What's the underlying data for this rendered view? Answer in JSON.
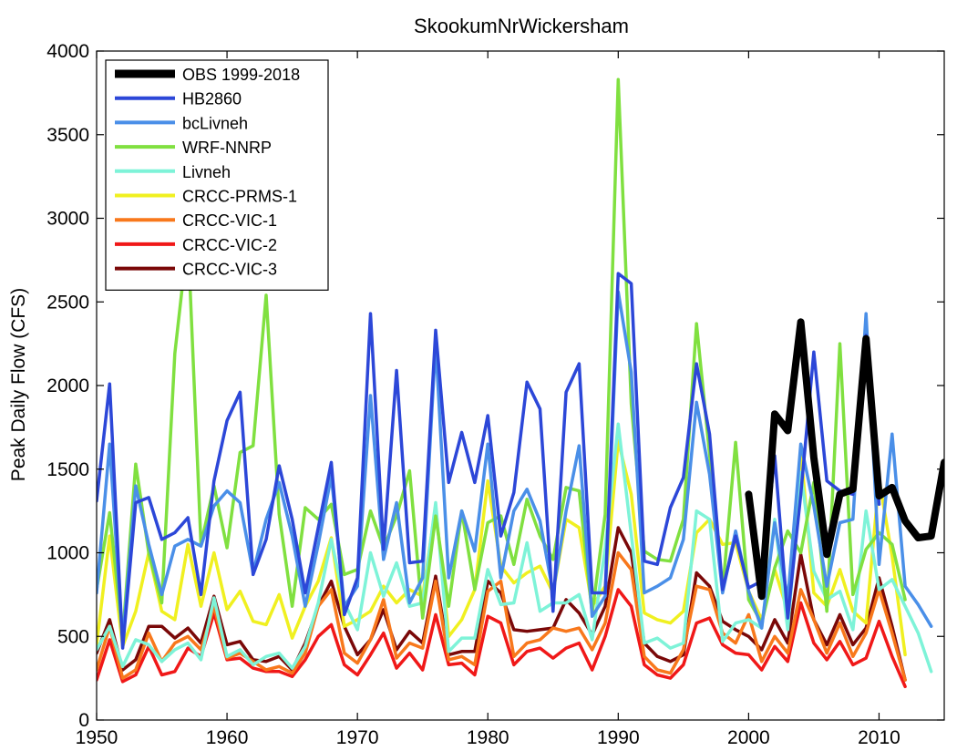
{
  "chart_data": {
    "type": "line",
    "title": "SkookumNrWickersham",
    "xlabel": "",
    "ylabel": "Peak Daily Flow (CFS)",
    "xlim": [
      1950,
      2015
    ],
    "ylim": [
      0,
      4000
    ],
    "xticks": [
      1950,
      1960,
      1970,
      1980,
      1990,
      2000,
      2010
    ],
    "yticks": [
      0,
      500,
      1000,
      1500,
      2000,
      2500,
      3000,
      3500,
      4000
    ],
    "grid": false,
    "legend_position": "top-left",
    "series": [
      {
        "name": "OBS 1999-2018",
        "color": "#000000",
        "x": [
          2000,
          2001,
          2002,
          2003,
          2004,
          2005,
          2006,
          2007,
          2008,
          2009,
          2010,
          2011,
          2012,
          2013,
          2014,
          2015
        ],
        "y": [
          1350,
          740,
          1830,
          1730,
          2380,
          1570,
          990,
          1350,
          1380,
          2280,
          1340,
          1390,
          1190,
          1090,
          1100,
          1540
        ]
      },
      {
        "name": "HB2860",
        "color": "#2c47d8",
        "x": [
          1950,
          1951,
          1952,
          1953,
          1954,
          1955,
          1956,
          1957,
          1958,
          1959,
          1960,
          1961,
          1962,
          1963,
          1964,
          1965,
          1966,
          1967,
          1968,
          1969,
          1970,
          1971,
          1972,
          1973,
          1974,
          1975,
          1976,
          1977,
          1978,
          1979,
          1980,
          1981,
          1982,
          1983,
          1984,
          1985,
          1986,
          1987,
          1988,
          1989,
          1990,
          1991,
          1992,
          1993,
          1994,
          1995,
          1996,
          1997,
          1998,
          1999,
          2000,
          2001,
          2002,
          2003,
          2004,
          2005,
          2006,
          2007,
          2008,
          2009,
          2010
        ],
        "y": [
          1310,
          2010,
          430,
          1300,
          1330,
          1080,
          1120,
          1210,
          750,
          1430,
          1790,
          1960,
          870,
          1080,
          1520,
          1200,
          760,
          1150,
          1540,
          630,
          850,
          2430,
          1020,
          2090,
          940,
          950,
          2330,
          1420,
          1720,
          1420,
          1820,
          1100,
          1360,
          2020,
          1860,
          650,
          1960,
          2130,
          760,
          760,
          2670,
          2610,
          950,
          930,
          1270,
          1450,
          2130,
          1710,
          780,
          1100,
          790,
          830,
          1580,
          610,
          1350,
          2200,
          1430,
          1370,
          1350,
          2300,
          1290
        ]
      },
      {
        "name": "bcLivneh",
        "color": "#4a8fe8",
        "x": [
          1950,
          1951,
          1952,
          1953,
          1954,
          1955,
          1956,
          1957,
          1958,
          1959,
          1960,
          1961,
          1962,
          1963,
          1964,
          1965,
          1966,
          1967,
          1968,
          1969,
          1970,
          1971,
          1972,
          1973,
          1974,
          1975,
          1976,
          1977,
          1978,
          1979,
          1980,
          1981,
          1982,
          1983,
          1984,
          1985,
          1986,
          1987,
          1988,
          1989,
          1990,
          1991,
          1992,
          1993,
          1994,
          1995,
          1996,
          1997,
          1998,
          1999,
          2000,
          2001,
          2002,
          2003,
          2004,
          2005,
          2006,
          2007,
          2008,
          2009,
          2010,
          2011,
          2012,
          2013,
          2014
        ],
        "y": [
          760,
          1650,
          470,
          1400,
          1050,
          750,
          1040,
          1080,
          1040,
          1280,
          1370,
          1300,
          880,
          1200,
          1420,
          1100,
          680,
          1050,
          1460,
          680,
          800,
          1940,
          960,
          1300,
          700,
          850,
          2250,
          850,
          1250,
          1010,
          1650,
          850,
          1250,
          1380,
          1190,
          760,
          1250,
          1640,
          620,
          740,
          2560,
          2080,
          760,
          800,
          850,
          1080,
          1900,
          1470,
          760,
          1130,
          770,
          550,
          1180,
          720,
          1650,
          1280,
          800,
          1180,
          1200,
          2430,
          930,
          1710,
          800,
          690,
          560
        ]
      },
      {
        "name": "WRF-NNRP",
        "color": "#80e040",
        "x": [
          1950,
          1951,
          1952,
          1953,
          1954,
          1955,
          1956,
          1957,
          1958,
          1959,
          1960,
          1961,
          1962,
          1963,
          1964,
          1965,
          1966,
          1967,
          1968,
          1969,
          1970,
          1971,
          1972,
          1973,
          1974,
          1975,
          1976,
          1977,
          1978,
          1979,
          1980,
          1981,
          1982,
          1983,
          1984,
          1985,
          1986,
          1987,
          1988,
          1989,
          1990,
          1991,
          1992,
          1993,
          1994,
          1995,
          1996,
          1997,
          1998,
          1999,
          2000,
          2001,
          2002,
          2003,
          2004,
          2005,
          2006,
          2007,
          2008,
          2009,
          2010,
          2011,
          2012
        ],
        "y": [
          780,
          1240,
          500,
          1530,
          1000,
          700,
          2190,
          2890,
          1050,
          1400,
          1030,
          1600,
          1640,
          2540,
          1230,
          680,
          1270,
          1200,
          1290,
          870,
          900,
          1250,
          1030,
          1220,
          1490,
          610,
          1220,
          680,
          1250,
          780,
          1180,
          1220,
          930,
          1320,
          1100,
          960,
          1390,
          1370,
          640,
          1230,
          3830,
          1890,
          1010,
          960,
          950,
          1200,
          2370,
          1590,
          770,
          1660,
          720,
          580,
          910,
          1130,
          1000,
          1420,
          650,
          2250,
          750,
          1020,
          1120,
          1050,
          720
        ]
      },
      {
        "name": "Livneh",
        "color": "#7ef3d8",
        "x": [
          1950,
          1951,
          1952,
          1953,
          1954,
          1955,
          1956,
          1957,
          1958,
          1959,
          1960,
          1961,
          1962,
          1963,
          1964,
          1965,
          1966,
          1967,
          1968,
          1969,
          1970,
          1971,
          1972,
          1973,
          1974,
          1975,
          1976,
          1977,
          1978,
          1979,
          1980,
          1981,
          1982,
          1983,
          1984,
          1985,
          1986,
          1987,
          1988,
          1989,
          1990,
          1991,
          1992,
          1993,
          1994,
          1995,
          1996,
          1997,
          1998,
          1999,
          2000,
          2001,
          2002,
          2003,
          2004,
          2005,
          2006,
          2007,
          2008,
          2009,
          2010,
          2011,
          2012,
          2013,
          2014
        ],
        "y": [
          420,
          560,
          320,
          480,
          450,
          350,
          420,
          460,
          360,
          730,
          380,
          420,
          330,
          380,
          400,
          310,
          440,
          700,
          1080,
          700,
          540,
          1000,
          740,
          940,
          680,
          700,
          1300,
          410,
          490,
          490,
          900,
          690,
          700,
          1060,
          650,
          700,
          700,
          750,
          480,
          1030,
          1770,
          1110,
          460,
          490,
          430,
          460,
          1250,
          1200,
          470,
          580,
          600,
          550,
          1200,
          540,
          1480,
          890,
          720,
          770,
          540,
          1250,
          780,
          840,
          680,
          520,
          290
        ]
      },
      {
        "name": "CRCC-PRMS-1",
        "color": "#f0f020",
        "x": [
          1950,
          1951,
          1952,
          1953,
          1954,
          1955,
          1956,
          1957,
          1958,
          1959,
          1960,
          1961,
          1962,
          1963,
          1964,
          1965,
          1966,
          1967,
          1968,
          1969,
          1970,
          1971,
          1972,
          1973,
          1974,
          1975,
          1976,
          1977,
          1978,
          1979,
          1980,
          1981,
          1982,
          1983,
          1984,
          1985,
          1986,
          1987,
          1988,
          1989,
          1990,
          1991,
          1992,
          1993,
          1994,
          1995,
          1996,
          1997,
          1998,
          1999,
          2000,
          2001,
          2002,
          2003,
          2004,
          2005,
          2006,
          2007,
          2008,
          2009,
          2010,
          2011,
          2012
        ],
        "y": [
          450,
          1100,
          440,
          650,
          1000,
          650,
          600,
          1050,
          680,
          1000,
          660,
          770,
          590,
          570,
          750,
          490,
          680,
          830,
          1090,
          560,
          600,
          650,
          800,
          700,
          780,
          740,
          1280,
          500,
          600,
          780,
          1430,
          920,
          820,
          880,
          920,
          760,
          1200,
          1150,
          680,
          800,
          1670,
          1350,
          640,
          600,
          580,
          650,
          1120,
          1200,
          1050,
          1060,
          770,
          600,
          900,
          650,
          1610,
          760,
          680,
          900,
          650,
          580,
          1440,
          980,
          390
        ]
      },
      {
        "name": "CRCC-VIC-1",
        "color": "#f8781c",
        "x": [
          1950,
          1951,
          1952,
          1953,
          1954,
          1955,
          1956,
          1957,
          1958,
          1959,
          1960,
          1961,
          1962,
          1963,
          1964,
          1965,
          1966,
          1967,
          1968,
          1969,
          1970,
          1971,
          1972,
          1973,
          1974,
          1975,
          1976,
          1977,
          1978,
          1979,
          1980,
          1981,
          1982,
          1983,
          1984,
          1985,
          1986,
          1987,
          1988,
          1989,
          1990,
          1991,
          1992,
          1993,
          1994,
          1995,
          1996,
          1997,
          1998,
          1999,
          2000,
          2001,
          2002,
          2003,
          2004,
          2005,
          2006,
          2007,
          2008,
          2009,
          2010,
          2011,
          2012
        ],
        "y": [
          300,
          560,
          250,
          300,
          520,
          350,
          460,
          500,
          420,
          680,
          370,
          400,
          350,
          300,
          320,
          280,
          400,
          680,
          780,
          400,
          340,
          480,
          720,
          370,
          460,
          430,
          830,
          360,
          380,
          330,
          770,
          830,
          380,
          460,
          480,
          550,
          530,
          550,
          420,
          580,
          1000,
          900,
          380,
          300,
          280,
          420,
          800,
          780,
          520,
          460,
          630,
          350,
          500,
          400,
          780,
          600,
          400,
          580,
          380,
          520,
          780,
          520,
          240
        ]
      },
      {
        "name": "CRCC-VIC-2",
        "color": "#f01818",
        "x": [
          1950,
          1951,
          1952,
          1953,
          1954,
          1955,
          1956,
          1957,
          1958,
          1959,
          1960,
          1961,
          1962,
          1963,
          1964,
          1965,
          1966,
          1967,
          1968,
          1969,
          1970,
          1971,
          1972,
          1973,
          1974,
          1975,
          1976,
          1977,
          1978,
          1979,
          1980,
          1981,
          1982,
          1983,
          1984,
          1985,
          1986,
          1987,
          1988,
          1989,
          1990,
          1991,
          1992,
          1993,
          1994,
          1995,
          1996,
          1997,
          1998,
          1999,
          2000,
          2001,
          2002,
          2003,
          2004,
          2005,
          2006,
          2007,
          2008,
          2009,
          2010,
          2011,
          2012
        ],
        "y": [
          240,
          480,
          230,
          270,
          440,
          270,
          290,
          430,
          380,
          640,
          360,
          370,
          310,
          290,
          290,
          260,
          360,
          500,
          570,
          330,
          270,
          390,
          520,
          310,
          400,
          300,
          630,
          330,
          340,
          270,
          620,
          580,
          330,
          410,
          430,
          370,
          430,
          460,
          300,
          500,
          780,
          680,
          330,
          270,
          250,
          330,
          580,
          610,
          450,
          400,
          390,
          300,
          440,
          350,
          700,
          460,
          360,
          470,
          330,
          370,
          590,
          380,
          200
        ]
      },
      {
        "name": "CRCC-VIC-3",
        "color": "#7a0808",
        "x": [
          1950,
          1951,
          1952,
          1953,
          1954,
          1955,
          1956,
          1957,
          1958,
          1959,
          1960,
          1961,
          1962,
          1963,
          1964,
          1965,
          1966,
          1967,
          1968,
          1969,
          1970,
          1971,
          1972,
          1973,
          1974,
          1975,
          1976,
          1977,
          1978,
          1979,
          1980,
          1981,
          1982,
          1983,
          1984,
          1985,
          1986,
          1987,
          1988,
          1989,
          1990,
          1991,
          1992,
          1993,
          1994,
          1995,
          1996,
          1997,
          1998,
          1999,
          2000,
          2001,
          2002,
          2003,
          2004,
          2005,
          2006,
          2007,
          2008,
          2009,
          2010,
          2011,
          2012
        ],
        "y": [
          400,
          600,
          300,
          360,
          560,
          560,
          490,
          550,
          460,
          740,
          450,
          470,
          360,
          350,
          380,
          300,
          460,
          680,
          830,
          560,
          390,
          480,
          660,
          420,
          530,
          460,
          860,
          390,
          410,
          410,
          830,
          760,
          540,
          530,
          540,
          550,
          720,
          640,
          510,
          680,
          1150,
          1000,
          460,
          380,
          350,
          390,
          880,
          800,
          590,
          540,
          500,
          420,
          600,
          460,
          990,
          600,
          450,
          630,
          450,
          550,
          850,
          560,
          240
        ]
      }
    ]
  }
}
